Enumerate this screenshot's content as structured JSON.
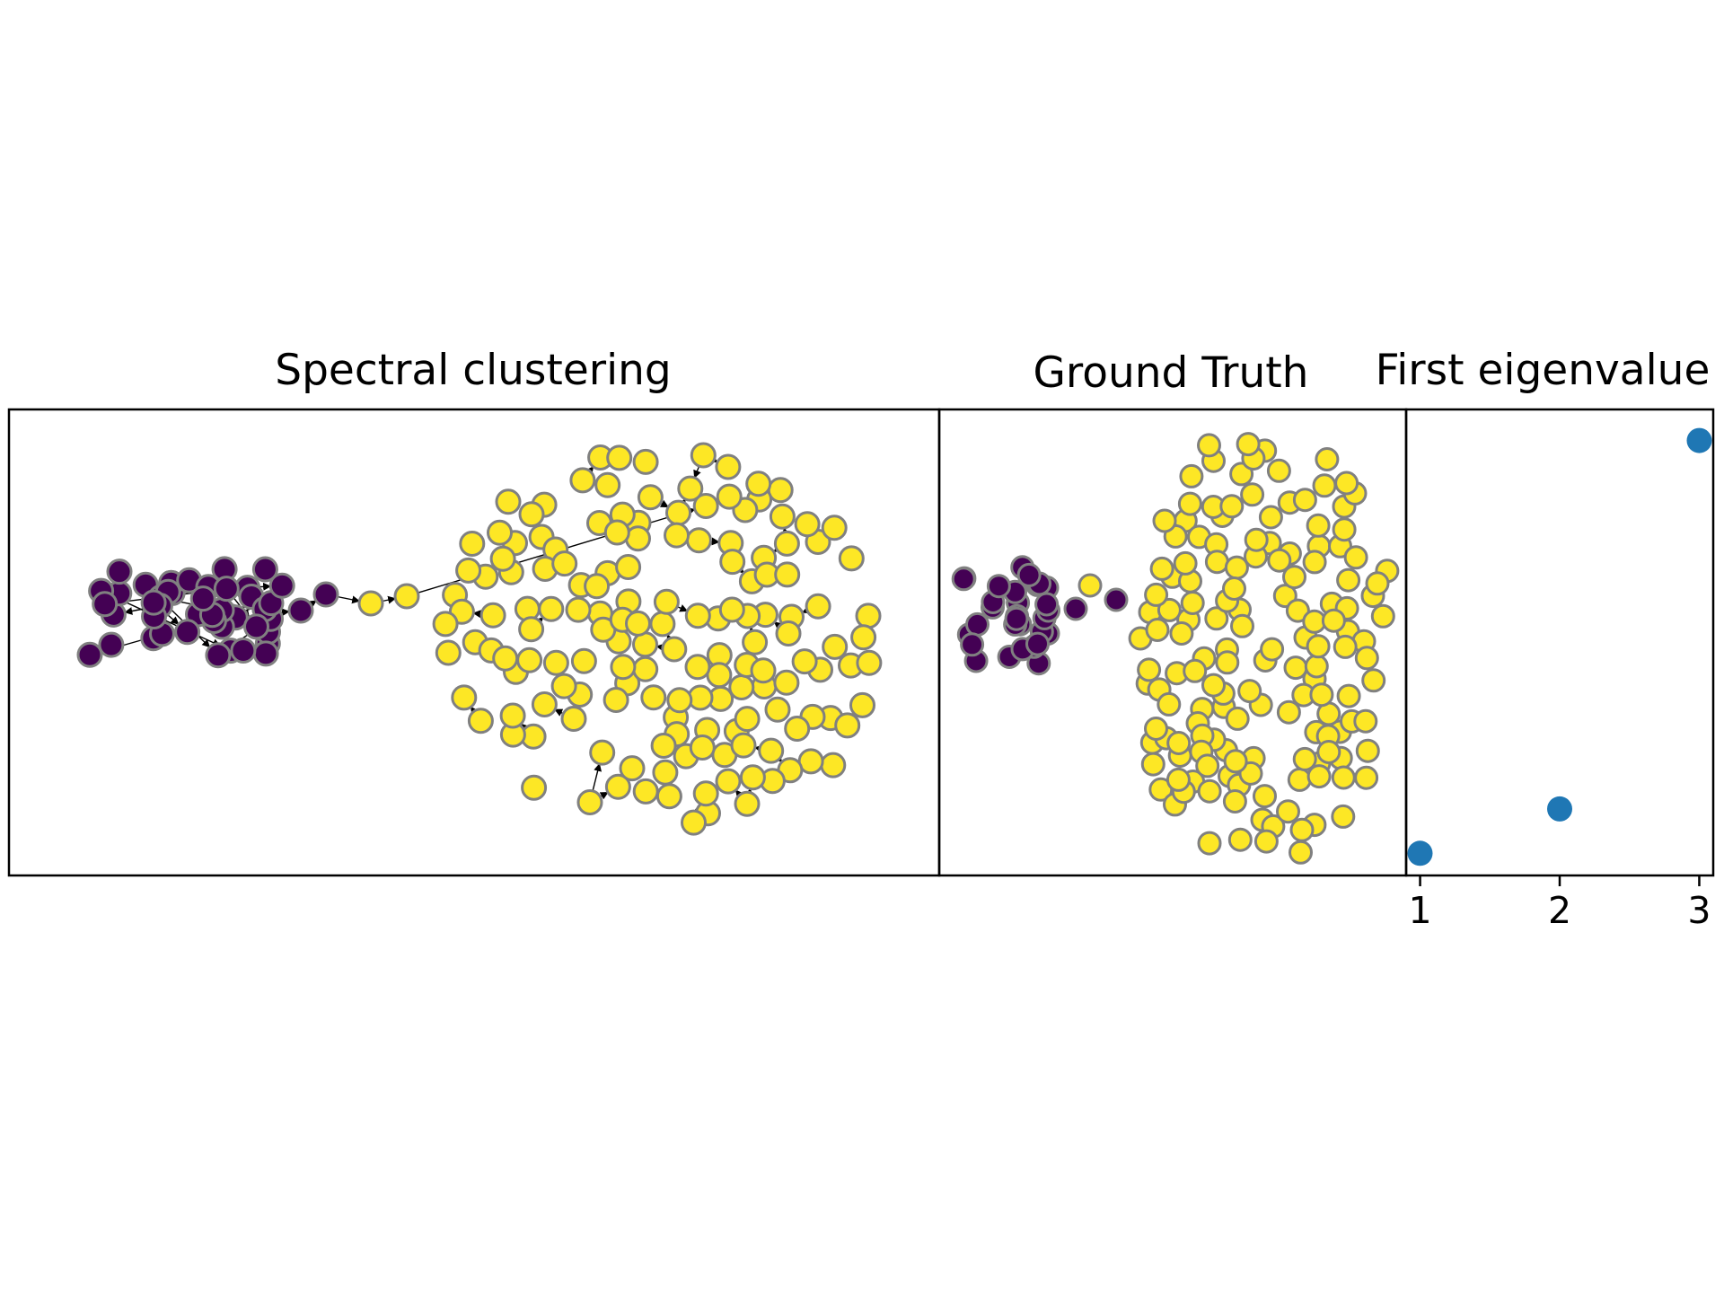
{
  "chart_data": [
    {
      "type": "network",
      "title": "Spectral clustering",
      "directed": true,
      "colors": {
        "cluster_0": "#440154",
        "cluster_1": "#fde725",
        "node_outline": "#808080",
        "edge": "#000000"
      },
      "clusters": [
        {
          "cluster": 0,
          "approx_node_count": 45
        },
        {
          "cluster": 1,
          "approx_node_count": 155
        }
      ]
    },
    {
      "type": "scatter",
      "title": "Ground Truth",
      "colors": {
        "cluster_0": "#440154",
        "cluster_1": "#fde725",
        "node_outline": "#808080"
      },
      "clusters": [
        {
          "cluster": 0,
          "approx_node_count": 30
        },
        {
          "cluster": 1,
          "approx_node_count": 150
        }
      ]
    },
    {
      "type": "scatter",
      "title": "First eigenvalue",
      "color": "#1f77b4",
      "x": [
        1,
        2,
        3
      ],
      "y": [
        0.0,
        0.1,
        0.93
      ],
      "xticks": [
        "1",
        "2",
        "3"
      ],
      "xlim": [
        0.9,
        3.1
      ],
      "ylim": [
        -0.05,
        1.0
      ],
      "grid": false,
      "legend": "none"
    }
  ]
}
